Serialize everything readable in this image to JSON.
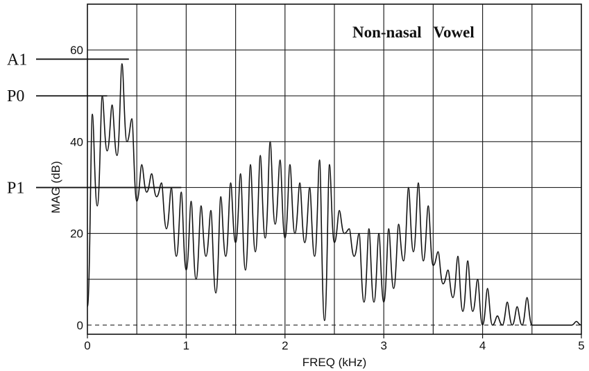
{
  "chart_data": {
    "type": "line",
    "title": "Non-nasal   Vowel",
    "xlabel": "FREQ (kHz)",
    "ylabel": "MAG (dB)",
    "xlim": [
      0,
      5
    ],
    "ylim": [
      -2,
      70
    ],
    "xticks": [
      0,
      1,
      2,
      3,
      4,
      5
    ],
    "xtick_labels": [
      "0",
      "1",
      "2",
      "3",
      "4",
      "5"
    ],
    "yticks": [
      0,
      20,
      40,
      60
    ],
    "ytick_labels": [
      "0",
      "20",
      "40",
      "60"
    ],
    "minor_gridlines_x": [
      0.5,
      1.5,
      2.5,
      3.5,
      4.5
    ],
    "minor_gridlines_y": [
      10,
      30,
      50
    ],
    "grid": true,
    "harmonic_spacing_khz": 0.1,
    "series": [
      {
        "harmonic_freqs_khz": [
          0.05,
          0.15,
          0.25,
          0.35,
          0.45,
          0.55,
          0.65,
          0.75,
          0.85,
          0.95,
          1.05,
          1.15,
          1.25,
          1.35,
          1.45,
          1.55,
          1.65,
          1.75,
          1.85,
          1.95,
          2.05,
          2.15,
          2.25,
          2.35,
          2.45,
          2.55,
          2.65,
          2.75,
          2.85,
          2.95,
          3.05,
          3.15,
          3.25,
          3.35,
          3.45,
          3.55,
          3.65,
          3.75,
          3.85,
          3.95,
          4.05,
          4.15,
          4.25,
          4.35,
          4.45,
          4.55
        ],
        "harmonic_peaks_db": [
          46,
          50,
          48,
          57,
          45,
          35,
          33,
          31,
          30,
          29,
          27,
          26,
          25,
          28,
          31,
          33,
          35,
          37,
          40,
          36,
          35,
          31,
          30,
          36,
          35,
          25,
          21,
          20,
          21,
          20,
          21,
          22,
          30,
          31,
          26,
          16,
          12,
          15,
          14,
          10,
          8,
          2,
          5,
          4,
          6,
          0
        ],
        "valley_db": [
          26,
          38,
          37,
          40,
          27,
          29,
          28,
          21,
          15,
          12,
          10,
          15,
          7,
          15,
          18,
          12,
          16,
          19,
          22,
          19,
          20,
          18,
          15,
          1,
          18,
          20,
          15,
          5,
          5,
          5,
          8,
          14,
          16,
          14,
          13,
          9,
          6,
          3,
          3,
          0,
          0,
          0,
          0,
          0,
          0,
          0
        ]
      }
    ],
    "reference_lines": [
      {
        "label": "A1",
        "y": 58
      },
      {
        "label": "P0",
        "y": 50
      },
      {
        "label": "P1",
        "y": 30
      }
    ]
  }
}
